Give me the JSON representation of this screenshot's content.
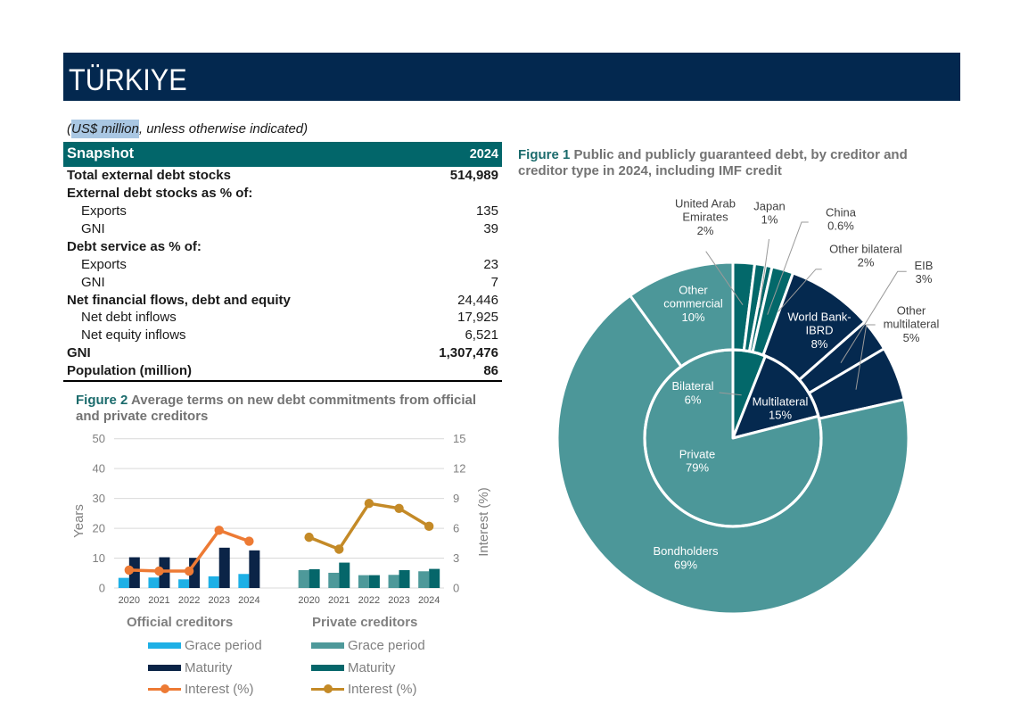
{
  "header": {
    "title": "TÜRKIYE"
  },
  "subtitle": {
    "prefix": "(",
    "highlight": "US$ million",
    "suffix": ", unless otherwise indicated)"
  },
  "snapshot": {
    "title": "Snapshot",
    "year": "2024",
    "rows": [
      {
        "label": "Total external debt stocks",
        "value": "514,989"
      },
      {
        "label": "External debt stocks as % of:"
      },
      {
        "label": "Exports",
        "value": "135"
      },
      {
        "label": "GNI",
        "value": "39"
      },
      {
        "label": "Debt service as % of:"
      },
      {
        "label": "Exports",
        "value": "23"
      },
      {
        "label": "GNI",
        "value": "7"
      },
      {
        "label": "Net financial flows, debt and equity",
        "value": "24,446"
      },
      {
        "label": "Net debt inflows",
        "value": "17,925"
      },
      {
        "label": "Net equity inflows",
        "value": "6,521"
      },
      {
        "label": "GNI",
        "value": "1,307,476"
      },
      {
        "label": "Population (million)",
        "value": "86"
      }
    ]
  },
  "colors": {
    "banner": "#03284f",
    "snapshot_header": "#02666a",
    "figure_label": "#1b6b6c",
    "figure_title": "#737373"
  },
  "chart_data": [
    {
      "type": "pie",
      "subtype": "sunburst",
      "figure_label": "Figure 1",
      "title": "Public and publicly guaranteed debt, by creditor and creditor type in 2024, including IMF credit",
      "unit": "%",
      "inner": [
        {
          "name": "Bilateral",
          "value": 6,
          "value_label": "6%",
          "color": "#03686a"
        },
        {
          "name": "Multilateral",
          "value": 15,
          "value_label": "15%",
          "color": "#05294f"
        },
        {
          "name": "Private",
          "value": 79,
          "value_label": "79%",
          "color": "#4c9799"
        }
      ],
      "outer": [
        {
          "name": "United Arab Emirates",
          "value": 2,
          "value_label": "2%",
          "parent": "Bilateral"
        },
        {
          "name": "Japan",
          "value": 1,
          "value_label": "1%",
          "parent": "Bilateral"
        },
        {
          "name": "China",
          "value": 0.6,
          "value_label": "0.6%",
          "parent": "Bilateral"
        },
        {
          "name": "Other bilateral",
          "value": 2,
          "value_label": "2%",
          "parent": "Bilateral"
        },
        {
          "name": "World Bank-IBRD",
          "value": 8,
          "value_label": "8%",
          "parent": "Multilateral"
        },
        {
          "name": "EIB",
          "value": 3,
          "value_label": "3%",
          "parent": "Multilateral"
        },
        {
          "name": "Other multilateral",
          "value": 5,
          "value_label": "5%",
          "parent": "Multilateral"
        },
        {
          "name": "Bondholders",
          "value": 69,
          "value_label": "69%",
          "parent": "Private"
        },
        {
          "name": "Other commercial",
          "value": 10,
          "value_label": "10%",
          "parent": "Private"
        }
      ]
    },
    {
      "type": "bar",
      "subtype": "bar+line",
      "figure_label": "Figure 2",
      "title": "Average terms on new debt commitments from official and private creditors",
      "categories": [
        "2020",
        "2021",
        "2022",
        "2023",
        "2024"
      ],
      "ylabel": "Years",
      "y2label": "Interest (%)",
      "ylim": [
        0,
        50
      ],
      "y2lim": [
        0,
        15
      ],
      "yticks": [
        0,
        10,
        20,
        30,
        40,
        50
      ],
      "y2ticks": [
        0,
        3,
        6,
        9,
        12,
        15
      ],
      "grid": true,
      "legend": "bottom",
      "groups": [
        {
          "name": "Official creditors",
          "series": [
            {
              "name": "Grace period",
              "type": "bar",
              "axis": "left",
              "color": "#1eb0e6",
              "values": [
                3.4,
                3.5,
                2.9,
                3.9,
                4.7
              ]
            },
            {
              "name": "Maturity",
              "type": "bar",
              "axis": "left",
              "color": "#0b2447",
              "values": [
                10.3,
                10.3,
                10.1,
                13.5,
                12.6
              ]
            },
            {
              "name": "Interest (%)",
              "type": "line",
              "axis": "right",
              "color": "#ed7a34",
              "values": [
                1.8,
                1.7,
                1.7,
                5.8,
                4.7
              ]
            }
          ]
        },
        {
          "name": "Private creditors",
          "series": [
            {
              "name": "Grace period",
              "type": "bar",
              "axis": "left",
              "color": "#4e999a",
              "values": [
                6.0,
                5.1,
                4.3,
                4.4,
                5.6
              ]
            },
            {
              "name": "Maturity",
              "type": "bar",
              "axis": "left",
              "color": "#05666a",
              "values": [
                6.3,
                8.5,
                4.3,
                6.0,
                6.4
              ]
            },
            {
              "name": "Interest (%)",
              "type": "line",
              "axis": "right",
              "color": "#c48a27",
              "values": [
                5.1,
                3.9,
                8.5,
                8.0,
                6.2
              ]
            }
          ]
        }
      ]
    }
  ]
}
